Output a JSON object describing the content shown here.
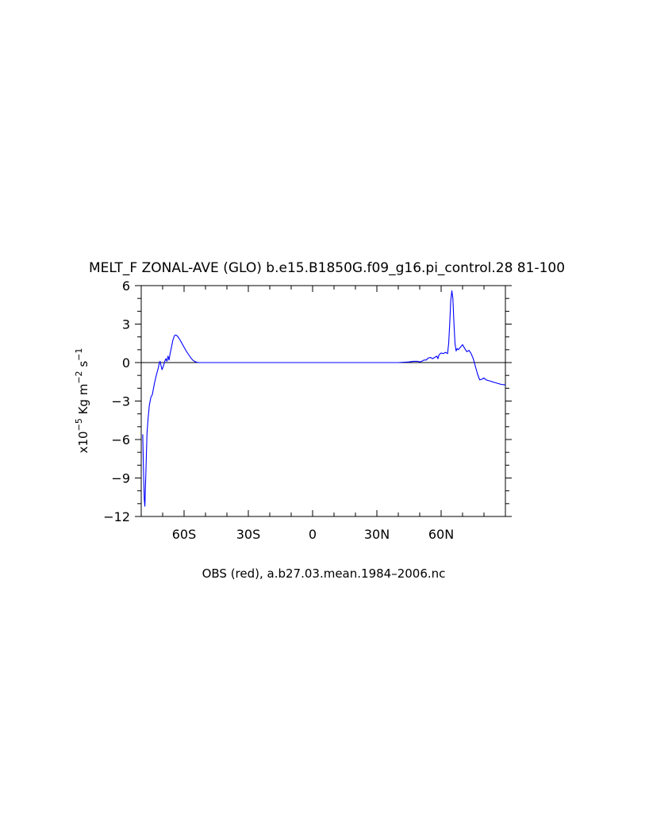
{
  "chart_data": {
    "type": "line",
    "title": "MELT_F ZONAL-AVE (GLO) b.e15.B1850G.f09_g16.pi_control.28 \u001281-100\u0012",
    "ylabel": {
      "prefix": "x10",
      "exp": "−5",
      "unit1": " Kg m",
      "exp2": "−2",
      "unit2": " s",
      "exp3": "−1"
    },
    "caption": "OBS (red), a.b27.03.mean.1984–2006.nc",
    "xlim": [
      -80,
      90
    ],
    "ylim": [
      -12,
      6
    ],
    "x_ticks": [
      {
        "value": -60,
        "label": "60S"
      },
      {
        "value": -30,
        "label": "30S"
      },
      {
        "value": 0,
        "label": "0"
      },
      {
        "value": 30,
        "label": "30N"
      },
      {
        "value": 60,
        "label": "60N"
      }
    ],
    "y_ticks": [
      {
        "value": 6,
        "label": "6"
      },
      {
        "value": 3,
        "label": "3"
      },
      {
        "value": 0,
        "label": "0"
      },
      {
        "value": -3,
        "label": "−3"
      },
      {
        "value": -6,
        "label": "−6"
      },
      {
        "value": -9,
        "label": "−9"
      },
      {
        "value": -12,
        "label": "−12"
      }
    ],
    "zero_line": true,
    "series": [
      {
        "color": "#0000ff",
        "x": [
          -79.3,
          -79.0,
          -78.6,
          -78.3,
          -77.8,
          -77.3,
          -76.8,
          -76.2,
          -75.5,
          -74.8,
          -73.8,
          -72.8,
          -72.0,
          -71.5,
          -71.2,
          -70.8,
          -70.3,
          -69.7,
          -69.0,
          -68.5,
          -68.0,
          -67.5,
          -67.0,
          -66.5,
          -66.0,
          -65.3,
          -64.5,
          -63.8,
          -63.0,
          -62.0,
          -61.0,
          -60.0,
          -59.0,
          -58.0,
          -57.0,
          -56.0,
          -55.0,
          -54.0,
          -53.0,
          -51.0,
          -48.0,
          -45.0,
          -40.0,
          -30.0,
          -20.0,
          -10.0,
          0.0,
          10.0,
          20.0,
          30.0,
          40.0,
          45.0,
          47.0,
          49.0,
          50.0,
          51.0,
          52.0,
          53.0,
          54.0,
          55.0,
          56.0,
          57.0,
          58.0,
          58.5,
          59.0,
          60.0,
          61.0,
          62.0,
          63.0,
          63.5,
          64.0,
          64.5,
          65.0,
          65.5,
          66.0,
          66.5,
          67.0,
          67.5,
          68.0,
          69.0,
          70.0,
          71.0,
          72.0,
          73.0,
          74.0,
          75.0,
          76.0,
          77.0,
          78.0,
          79.0,
          80.0,
          81.0,
          82.0,
          83.0,
          84.0,
          85.0,
          86.0,
          87.0,
          88.0,
          89.0,
          90.0
        ],
        "y": [
          -5.6,
          -8.0,
          -10.6,
          -11.2,
          -8.5,
          -5.5,
          -4.4,
          -3.3,
          -2.7,
          -2.5,
          -1.6,
          -0.9,
          -0.4,
          0.0,
          0.1,
          -0.2,
          -0.55,
          -0.3,
          0.1,
          0.3,
          0.1,
          0.5,
          0.2,
          0.7,
          1.1,
          1.7,
          2.1,
          2.15,
          2.05,
          1.8,
          1.5,
          1.2,
          0.9,
          0.65,
          0.4,
          0.2,
          0.08,
          0.02,
          0.0,
          0.0,
          0.0,
          0.0,
          0.0,
          0.0,
          0.0,
          0.0,
          0.0,
          0.0,
          0.0,
          0.0,
          0.0,
          0.05,
          0.1,
          0.1,
          0.05,
          0.1,
          0.2,
          0.2,
          0.35,
          0.4,
          0.3,
          0.4,
          0.5,
          0.3,
          0.6,
          0.75,
          0.7,
          0.8,
          0.7,
          1.5,
          3.0,
          4.8,
          5.6,
          5.0,
          3.0,
          1.5,
          0.9,
          1.1,
          1.0,
          1.2,
          1.4,
          1.1,
          0.85,
          0.95,
          0.7,
          0.3,
          -0.3,
          -0.9,
          -1.35,
          -1.3,
          -1.2,
          -1.35,
          -1.4,
          -1.45,
          -1.5,
          -1.55,
          -1.6,
          -1.65,
          -1.7,
          -1.72,
          -1.75
        ]
      }
    ]
  }
}
